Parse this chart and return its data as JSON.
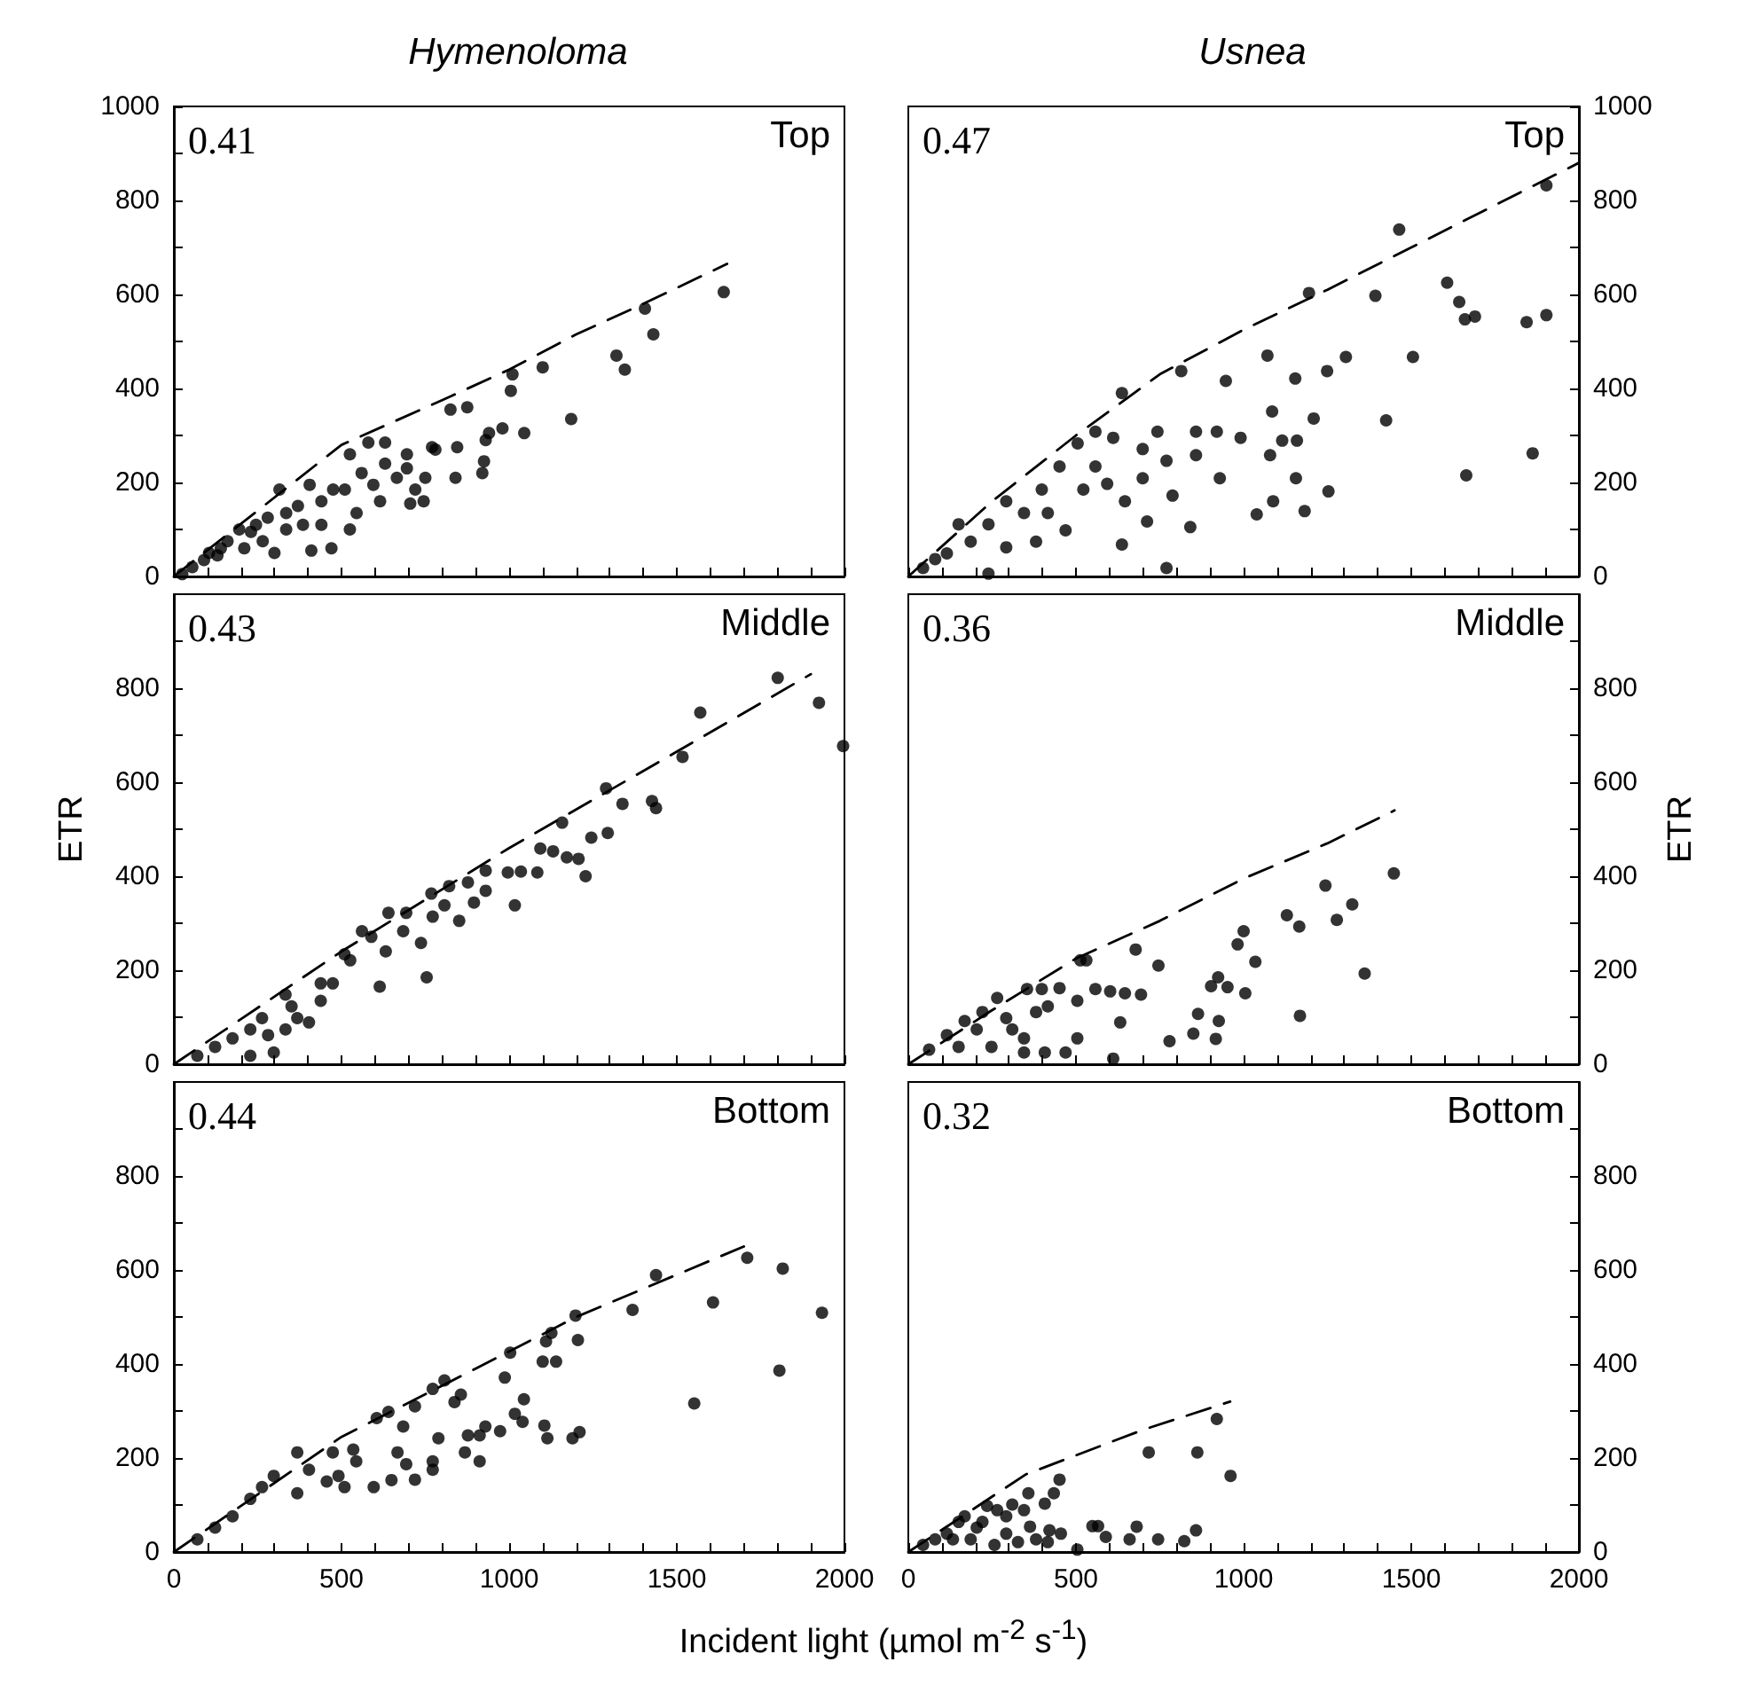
{
  "chart_data": [
    {
      "type": "scatter",
      "title": "Hymenoloma",
      "annotations": [
        "0.41",
        "Top"
      ],
      "marker": "circle",
      "tick_labels": "y",
      "xlim": [
        0,
        2000
      ],
      "ylim": [
        0,
        1000
      ],
      "xticks": [
        0,
        {
          "value": 100,
          "label": null
        },
        {
          "value": 200,
          "label": null
        },
        {
          "value": 300,
          "label": null
        },
        {
          "value": 400,
          "label": null
        },
        500,
        {
          "value": 600,
          "label": null
        },
        {
          "value": 700,
          "label": null
        },
        {
          "value": 800,
          "label": null
        },
        {
          "value": 900,
          "label": null
        },
        1000,
        {
          "value": 1100,
          "label": null
        },
        {
          "value": 1200,
          "label": null
        },
        {
          "value": 1300,
          "label": null
        },
        {
          "value": 1400,
          "label": null
        },
        1500,
        {
          "value": 1600,
          "label": null
        },
        {
          "value": 1700,
          "label": null
        },
        {
          "value": 1800,
          "label": null
        },
        {
          "value": 1900,
          "label": null
        },
        2000
      ],
      "yticks": [
        0,
        {
          "value": 100,
          "label": null
        },
        200,
        {
          "value": 300,
          "label": null
        },
        400,
        {
          "value": 500,
          "label": null
        },
        600,
        {
          "value": 700,
          "label": null
        },
        800,
        {
          "value": 900,
          "label": null
        },
        1000
      ],
      "series": [
        {
          "type": "scatter",
          "color": "#000000",
          "x": [
            1640,
            1405,
            1430,
            1320,
            1345,
            1185,
            1100,
            1010,
            1005,
            1045,
            980,
            940,
            930,
            925,
            920,
            875,
            825,
            845,
            840,
            780,
            770,
            750,
            720,
            705,
            745,
            695,
            695,
            630,
            580,
            525,
            510,
            525,
            470,
            410,
            440,
            405,
            595,
            560,
            630,
            475,
            440,
            370,
            280,
            195,
            160,
            105,
            25,
            615,
            665,
            545,
            385,
            335,
            265,
            315,
            335,
            300,
            245,
            210,
            140,
            90,
            55,
            230,
            130
          ],
          "values": [
            605,
            570,
            515,
            470,
            440,
            335,
            445,
            430,
            395,
            305,
            315,
            305,
            290,
            245,
            220,
            360,
            355,
            275,
            210,
            270,
            275,
            210,
            185,
            155,
            160,
            230,
            260,
            285,
            285,
            260,
            185,
            100,
            60,
            55,
            110,
            195,
            195,
            220,
            240,
            185,
            160,
            150,
            125,
            100,
            75,
            50,
            5,
            160,
            210,
            135,
            110,
            100,
            75,
            185,
            135,
            50,
            110,
            60,
            60,
            35,
            20,
            95,
            45
          ]
        },
        {
          "type": "line",
          "color": "#000000",
          "marker": "none",
          "line_style": "dashed",
          "x": [
            0,
            500,
            800,
            1000,
            1200,
            1400,
            1650
          ],
          "values": [
            0,
            280,
            375,
            440,
            515,
            580,
            665
          ]
        }
      ]
    },
    {
      "type": "scatter",
      "title": "Usnea",
      "annotations": [
        "0.47",
        "Top"
      ],
      "marker": "circle",
      "tick_labels": "y",
      "xlim": [
        0,
        2000
      ],
      "ylim": [
        0,
        1000
      ],
      "xticks": [
        0,
        {
          "value": 100,
          "label": null
        },
        {
          "value": 200,
          "label": null
        },
        {
          "value": 300,
          "label": null
        },
        {
          "value": 400,
          "label": null
        },
        500,
        {
          "value": 600,
          "label": null
        },
        {
          "value": 700,
          "label": null
        },
        {
          "value": 800,
          "label": null
        },
        {
          "value": 900,
          "label": null
        },
        1000,
        {
          "value": 1100,
          "label": null
        },
        {
          "value": 1200,
          "label": null
        },
        {
          "value": 1300,
          "label": null
        },
        {
          "value": 1400,
          "label": null
        },
        1500,
        {
          "value": 1600,
          "label": null
        },
        {
          "value": 1700,
          "label": null
        },
        {
          "value": 1800,
          "label": null
        },
        {
          "value": 1900,
          "label": null
        },
        2000
      ],
      "yticks": [
        0,
        {
          "value": 100,
          "label": null
        },
        200,
        {
          "value": 300,
          "label": null
        },
        400,
        {
          "value": 500,
          "label": null
        },
        600,
        {
          "value": 700,
          "label": null
        },
        800,
        {
          "value": 900,
          "label": null
        },
        1000
      ],
      "series": [
        {
          "type": "scatter",
          "color": "#000000",
          "x": [
            1903,
            1464,
            1195,
            1393,
            1607,
            1643,
            1660,
            1690,
            1844,
            1903,
            1505,
            1664,
            1862,
            1425,
            1305,
            1249,
            1209,
            1154,
            1156,
            1253,
            1182,
            1088,
            1039,
            1071,
            947,
            814,
            637,
            770,
            637,
            841,
            712,
            1085,
            1079,
            1115,
            1159,
            991,
            920,
            858,
            743,
            611,
            558,
            505,
            451,
            593,
            699,
            770,
            858,
            929,
            646,
            522,
            398,
            345,
            292,
            239,
            186,
            115,
            44,
            469,
            381,
            292,
            416,
            239,
            150,
            80,
            558,
            699,
            788
          ],
          "values": [
            832,
            738,
            603,
            597,
            625,
            584,
            547,
            553,
            541,
            556,
            467,
            215,
            262,
            332,
            467,
            437,
            336,
            421,
            209,
            181,
            139,
            160,
            132,
            470,
            416,
            437,
            390,
            18,
            68,
            105,
            117,
            351,
            258,
            289,
            289,
            295,
            308,
            308,
            308,
            295,
            308,
            283,
            234,
            197,
            209,
            246,
            258,
            209,
            160,
            185,
            185,
            135,
            160,
            111,
            74,
            49,
            18,
            98,
            74,
            62,
            135,
            6,
            111,
            37,
            234,
            271,
            172
          ]
        },
        {
          "type": "line",
          "color": "#000000",
          "marker": "none",
          "line_style": "dashed",
          "x": [
            0,
            250,
            500,
            750,
            1000,
            1250,
            1500,
            1750,
            2000
          ],
          "values": [
            0,
            160,
            300,
            430,
            525,
            610,
            700,
            790,
            880
          ]
        }
      ]
    },
    {
      "type": "scatter",
      "ylabel": "ETR",
      "annotations": [
        "0.43",
        "Middle"
      ],
      "marker": "circle",
      "tick_labels": "y",
      "xlim": [
        0,
        2000
      ],
      "ylim": [
        0,
        1000
      ],
      "xticks": [
        0,
        {
          "value": 100,
          "label": null
        },
        {
          "value": 200,
          "label": null
        },
        {
          "value": 300,
          "label": null
        },
        {
          "value": 400,
          "label": null
        },
        500,
        {
          "value": 600,
          "label": null
        },
        {
          "value": 700,
          "label": null
        },
        {
          "value": 800,
          "label": null
        },
        {
          "value": 900,
          "label": null
        },
        1000,
        {
          "value": 1100,
          "label": null
        },
        {
          "value": 1200,
          "label": null
        },
        {
          "value": 1300,
          "label": null
        },
        {
          "value": 1400,
          "label": null
        },
        1500,
        {
          "value": 1600,
          "label": null
        },
        {
          "value": 1700,
          "label": null
        },
        {
          "value": 1800,
          "label": null
        },
        {
          "value": 1900,
          "label": null
        },
        2000
      ],
      "yticks": [
        0,
        {
          "value": 100,
          "label": null
        },
        200,
        {
          "value": 300,
          "label": null
        },
        400,
        {
          "value": 500,
          "label": null
        },
        600,
        {
          "value": 700,
          "label": null
        },
        800,
        {
          "value": 900,
          "label": null
        }
      ],
      "series": [
        {
          "type": "scatter",
          "color": "#000000",
          "x": [
            1801,
            1924,
            1996,
            1570,
            1517,
            1289,
            1338,
            1426,
            1438,
            1158,
            1245,
            1294,
            1228,
            1207,
            1172,
            1093,
            1131,
            1084,
            1035,
            996,
            930,
            930,
            1017,
            877,
            895,
            821,
            768,
            807,
            851,
            772,
            693,
            640,
            737,
            754,
            614,
            589,
            526,
            474,
            438,
            403,
            368,
            333,
            298,
            228,
            281,
            228,
            175,
            123,
            70,
            509,
            561,
            438,
            333,
            263,
            684,
            632,
            351
          ],
          "values": [
            822,
            769,
            677,
            748,
            654,
            587,
            554,
            560,
            545,
            514,
            482,
            492,
            400,
            437,
            440,
            459,
            453,
            408,
            410,
            408,
            412,
            369,
            338,
            387,
            344,
            379,
            363,
            338,
            305,
            314,
            322,
            322,
            258,
            185,
            165,
            271,
            221,
            172,
            135,
            89,
            98,
            74,
            25,
            18,
            62,
            74,
            55,
            37,
            18,
            234,
            283,
            172,
            148,
            98,
            283,
            240,
            123
          ]
        },
        {
          "type": "line",
          "color": "#000000",
          "marker": "none",
          "line_style": "dashed",
          "x": [
            0,
            500,
            1000,
            1500,
            1900
          ],
          "values": [
            0,
            240,
            460,
            665,
            830
          ]
        }
      ]
    },
    {
      "type": "scatter",
      "ylabel": "ETR",
      "annotations": [
        "0.36",
        "Middle"
      ],
      "marker": "circle",
      "tick_labels": "y",
      "xlim": [
        0,
        2000
      ],
      "ylim": [
        0,
        1000
      ],
      "xticks": [
        0,
        {
          "value": 100,
          "label": null
        },
        {
          "value": 200,
          "label": null
        },
        {
          "value": 300,
          "label": null
        },
        {
          "value": 400,
          "label": null
        },
        500,
        {
          "value": 600,
          "label": null
        },
        {
          "value": 700,
          "label": null
        },
        {
          "value": 800,
          "label": null
        },
        {
          "value": 900,
          "label": null
        },
        1000,
        {
          "value": 1100,
          "label": null
        },
        {
          "value": 1200,
          "label": null
        },
        {
          "value": 1300,
          "label": null
        },
        {
          "value": 1400,
          "label": null
        },
        1500,
        {
          "value": 1600,
          "label": null
        },
        {
          "value": 1700,
          "label": null
        },
        {
          "value": 1800,
          "label": null
        },
        {
          "value": 1900,
          "label": null
        },
        2000
      ],
      "yticks": [
        0,
        {
          "value": 100,
          "label": null
        },
        200,
        {
          "value": 300,
          "label": null
        },
        400,
        {
          "value": 500,
          "label": null
        },
        600,
        {
          "value": 700,
          "label": null
        },
        800,
        {
          "value": 900,
          "label": null
        }
      ],
      "series": [
        {
          "type": "scatter",
          "color": "#000000",
          "x": [
            1448,
            1244,
            1324,
            1278,
            1129,
            1166,
            1035,
            1000,
            982,
            1005,
            1361,
            1168,
            924,
            903,
            952,
            926,
            917,
            864,
            850,
            779,
            746,
            678,
            694,
            646,
            632,
            611,
            531,
            513,
            558,
            602,
            504,
            451,
            504,
            469,
            407,
            398,
            416,
            354,
            345,
            345,
            292,
            265,
            221,
            168,
            115,
            62,
            150,
            248,
            310,
            381,
            204
          ],
          "values": [
            406,
            380,
            340,
            307,
            317,
            293,
            218,
            283,
            255,
            151,
            193,
            103,
            185,
            166,
            164,
            92,
            54,
            107,
            65,
            49,
            210,
            244,
            148,
            151,
            89,
            12,
            221,
            221,
            160,
            155,
            135,
            162,
            55,
            25,
            25,
            160,
            123,
            160,
            55,
            25,
            98,
            141,
            111,
            92,
            62,
            31,
            37,
            37,
            74,
            111,
            74
          ]
        },
        {
          "type": "line",
          "color": "#000000",
          "marker": "none",
          "line_style": "dashed",
          "x": [
            0,
            250,
            500,
            750,
            1000,
            1250,
            1450
          ],
          "values": [
            0,
            115,
            225,
            305,
            395,
            470,
            540
          ]
        }
      ]
    },
    {
      "type": "scatter",
      "xlabel": "Incident light (µmol m$^{-2}$ s$^{-1}$)",
      "annotations": [
        "0.44",
        "Bottom"
      ],
      "marker": "circle",
      "xlim": [
        0,
        2000
      ],
      "ylim": [
        0,
        1000
      ],
      "xticks": [
        0,
        {
          "value": 100,
          "label": null
        },
        {
          "value": 200,
          "label": null
        },
        {
          "value": 300,
          "label": null
        },
        {
          "value": 400,
          "label": null
        },
        500,
        {
          "value": 600,
          "label": null
        },
        {
          "value": 700,
          "label": null
        },
        {
          "value": 800,
          "label": null
        },
        {
          "value": 900,
          "label": null
        },
        1000,
        {
          "value": 1100,
          "label": null
        },
        {
          "value": 1200,
          "label": null
        },
        {
          "value": 1300,
          "label": null
        },
        {
          "value": 1400,
          "label": null
        },
        1500,
        {
          "value": 1600,
          "label": null
        },
        {
          "value": 1700,
          "label": null
        },
        {
          "value": 1800,
          "label": null
        },
        {
          "value": 1900,
          "label": null
        },
        2000
      ],
      "yticks": [
        0,
        {
          "value": 100,
          "label": null
        },
        200,
        {
          "value": 300,
          "label": null
        },
        400,
        {
          "value": 500,
          "label": null
        },
        600,
        {
          "value": 700,
          "label": null
        },
        800,
        {
          "value": 900,
          "label": null
        }
      ],
      "series": [
        {
          "type": "scatter",
          "color": "#000000",
          "x": [
            1710,
            1816,
            1933,
            1806,
            1552,
            1608,
            1368,
            1438,
            1198,
            1205,
            1126,
            1110,
            1140,
            1100,
            1003,
            987,
            1044,
            1017,
            1040,
            1105,
            1114,
            1189,
            1210,
            973,
            929,
            912,
            877,
            868,
            912,
            856,
            807,
            772,
            837,
            789,
            772,
            772,
            719,
            684,
            667,
            693,
            649,
            596,
            719,
            605,
            640,
            535,
            544,
            491,
            474,
            403,
            368,
            298,
            263,
            228,
            175,
            123,
            70,
            456,
            368,
            509
          ],
          "values": [
            626,
            603,
            509,
            386,
            316,
            531,
            515,
            589,
            503,
            451,
            466,
            448,
            405,
            405,
            424,
            371,
            325,
            294,
            277,
            269,
            242,
            242,
            255,
            257,
            267,
            248,
            248,
            212,
            193,
            335,
            365,
            347,
            319,
            242,
            193,
            175,
            310,
            267,
            212,
            187,
            153,
            138,
            154,
            285,
            298,
            218,
            193,
            162,
            212,
            175,
            212,
            162,
            138,
            113,
            76,
            52,
            27,
            150,
            125,
            138
          ]
        },
        {
          "type": "line",
          "color": "#000000",
          "marker": "none",
          "line_style": "dashed",
          "x": [
            0,
            500,
            900,
            1200,
            1700
          ],
          "values": [
            0,
            245,
            390,
            500,
            650
          ]
        }
      ]
    },
    {
      "type": "scatter",
      "annotations": [
        "0.32",
        "Bottom"
      ],
      "marker": "circle",
      "xlim": [
        0,
        2000
      ],
      "ylim": [
        0,
        1000
      ],
      "xticks": [
        0,
        {
          "value": 100,
          "label": null
        },
        {
          "value": 200,
          "label": null
        },
        {
          "value": 300,
          "label": null
        },
        {
          "value": 400,
          "label": null
        },
        500,
        {
          "value": 600,
          "label": null
        },
        {
          "value": 700,
          "label": null
        },
        {
          "value": 800,
          "label": null
        },
        {
          "value": 900,
          "label": null
        },
        1000,
        {
          "value": 1100,
          "label": null
        },
        {
          "value": 1200,
          "label": null
        },
        {
          "value": 1300,
          "label": null
        },
        {
          "value": 1400,
          "label": null
        },
        1500,
        {
          "value": 1600,
          "label": null
        },
        {
          "value": 1700,
          "label": null
        },
        {
          "value": 1800,
          "label": null
        },
        {
          "value": 1900,
          "label": null
        },
        2000
      ],
      "yticks": [
        0,
        {
          "value": 100,
          "label": null
        },
        200,
        {
          "value": 300,
          "label": null
        },
        400,
        {
          "value": 500,
          "label": null
        },
        600,
        {
          "value": 700,
          "label": null
        },
        800,
        {
          "value": 900,
          "label": null
        }
      ],
      "series": [
        {
          "type": "scatter",
          "color": "#000000",
          "x": [
            920,
            717,
            862,
            961,
            451,
            434,
            407,
            358,
            345,
            310,
            265,
            235,
            363,
            421,
            455,
            549,
            566,
            589,
            660,
            681,
            745,
            823,
            858,
            504,
            416,
            381,
            292,
            204,
            150,
            115,
            80,
            44,
            186,
            257,
            327,
            168,
            221,
            292,
            133
          ],
          "values": [
            283,
            212,
            212,
            162,
            154,
            125,
            103,
            125,
            89,
            101,
            89,
            98,
            54,
            46,
            39,
            55,
            55,
            32,
            27,
            54,
            27,
            23,
            46,
            5,
            21,
            27,
            39,
            52,
            64,
            39,
            27,
            15,
            27,
            15,
            21,
            76,
            64,
            76,
            27
          ]
        },
        {
          "type": "line",
          "color": "#000000",
          "marker": "none",
          "line_style": "dashed",
          "x": [
            0,
            350,
            700,
            960
          ],
          "values": [
            0,
            165,
            260,
            320
          ]
        }
      ]
    }
  ]
}
